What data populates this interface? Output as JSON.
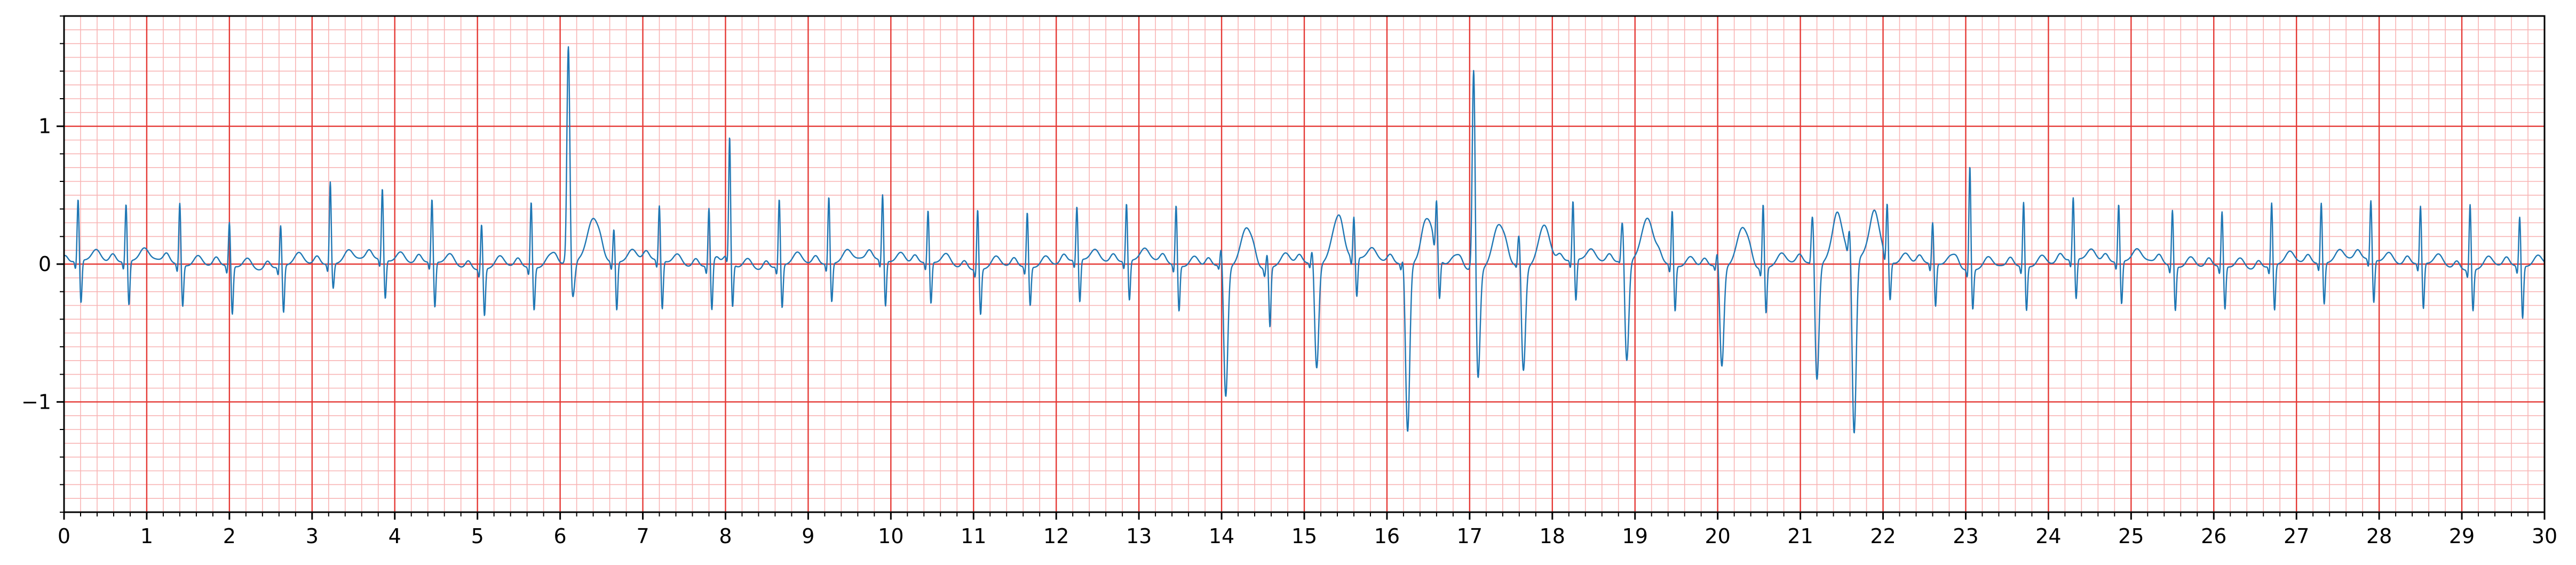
{
  "chart_data": {
    "type": "line",
    "title": "",
    "xlabel": "",
    "ylabel": "",
    "xlim": [
      0,
      30
    ],
    "ylim": [
      -1.8,
      1.8
    ],
    "x_ticks": [
      0,
      1,
      2,
      3,
      4,
      5,
      6,
      7,
      8,
      9,
      10,
      11,
      12,
      13,
      14,
      15,
      16,
      17,
      18,
      19,
      20,
      21,
      22,
      23,
      24,
      25,
      26,
      27,
      28,
      29,
      30
    ],
    "x_tick_labels": [
      "0",
      "1",
      "2",
      "3",
      "4",
      "5",
      "6",
      "7",
      "8",
      "9",
      "10",
      "11",
      "12",
      "13",
      "14",
      "15",
      "16",
      "17",
      "18",
      "19",
      "20",
      "21",
      "22",
      "23",
      "24",
      "25",
      "26",
      "27",
      "28",
      "29",
      "30"
    ],
    "y_ticks": [
      -1,
      0,
      1
    ],
    "y_tick_labels": [
      "−1",
      "0",
      "1"
    ],
    "grid": "on",
    "major_grid": {
      "x_step": 1,
      "y_step": 1,
      "color": "#e53935"
    },
    "minor_grid": {
      "x_step": 0.2,
      "y_step": 0.1,
      "color": "#f8b4b4"
    },
    "line_color": "#1f77b4",
    "background": "#ffffff",
    "series": [
      {
        "beat_times": [
          0.17,
          0.75,
          1.4,
          2.0,
          2.62,
          3.22,
          3.85,
          4.45,
          5.05,
          5.65,
          6.1,
          6.65,
          7.2,
          7.8,
          8.05,
          8.65,
          9.25,
          9.9,
          10.45,
          11.05,
          11.65,
          12.25,
          12.85,
          13.45,
          14.0,
          14.55,
          15.1,
          15.6,
          16.2,
          16.6,
          17.05,
          17.6,
          18.25,
          18.85,
          19.45,
          20.0,
          20.55,
          21.15,
          21.6,
          22.05,
          22.6,
          23.05,
          23.7,
          24.3,
          24.85,
          25.5,
          26.1,
          26.7,
          27.3,
          27.9,
          28.5,
          29.1,
          29.7
        ],
        "r_peaks": [
          0.45,
          0.42,
          0.45,
          0.32,
          0.3,
          0.6,
          0.52,
          0.46,
          0.33,
          0.48,
          1.6,
          0.24,
          0.4,
          0.42,
          0.88,
          0.49,
          0.49,
          0.48,
          0.38,
          0.44,
          0.4,
          0.39,
          0.42,
          0.44,
          0.2,
          0.1,
          0.15,
          0.3,
          0.1,
          0.35,
          1.55,
          0.3,
          0.43,
          0.36,
          0.4,
          0.15,
          0.47,
          0.43,
          0.28,
          0.4,
          0.3,
          0.76,
          0.47,
          0.45,
          0.42,
          0.41,
          0.4,
          0.46,
          0.44,
          0.43,
          0.42,
          0.48,
          0.36
        ],
        "s_troughs": [
          -0.33,
          -0.34,
          -0.32,
          -0.37,
          -0.36,
          -0.2,
          -0.3,
          -0.35,
          -0.36,
          -0.33,
          -0.3,
          -0.37,
          -0.37,
          -0.36,
          -0.35,
          -0.33,
          -0.3,
          -0.35,
          -0.32,
          -0.35,
          -0.3,
          -0.33,
          -0.31,
          -0.35,
          -0.97,
          -0.45,
          -0.78,
          -0.3,
          -1.24,
          -0.32,
          -0.83,
          -0.78,
          -0.32,
          -0.75,
          -0.35,
          -0.75,
          -0.35,
          -0.87,
          -1.3,
          -0.3,
          -0.33,
          -0.31,
          -0.34,
          -0.31,
          -0.33,
          -0.34,
          -0.33,
          -0.35,
          -0.32,
          -0.33,
          -0.35,
          -0.32,
          -0.4
        ]
      }
    ]
  }
}
